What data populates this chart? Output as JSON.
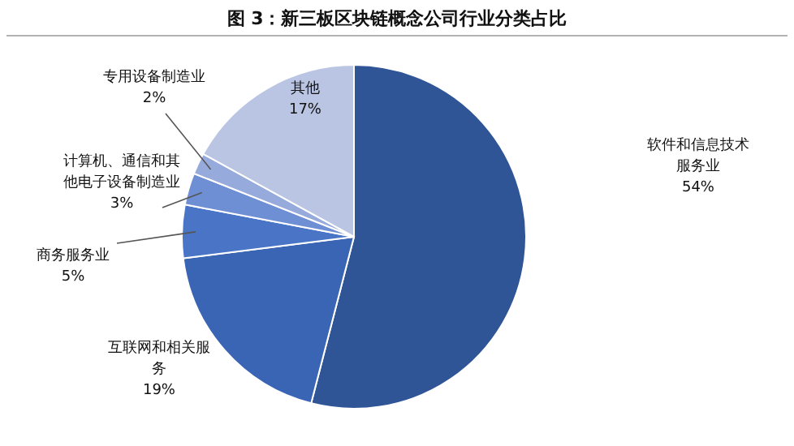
{
  "chart_data": {
    "type": "pie",
    "title": "图 3：新三板区块链概念公司行业分类占比",
    "categories": [
      "软件和信息技术服务业",
      "互联网和相关服务",
      "商务服务业",
      "计算机、通信和其他电子设备制造业",
      "专用设备制造业",
      "其他"
    ],
    "values": [
      54,
      19,
      5,
      3,
      2,
      17
    ],
    "colors": [
      "#2f5597",
      "#3a64b4",
      "#4a75c6",
      "#6f8fd4",
      "#97aadc",
      "#b9c5e2"
    ],
    "value_labels": [
      "54%",
      "19%",
      "5%",
      "3%",
      "2%",
      "17%"
    ]
  }
}
